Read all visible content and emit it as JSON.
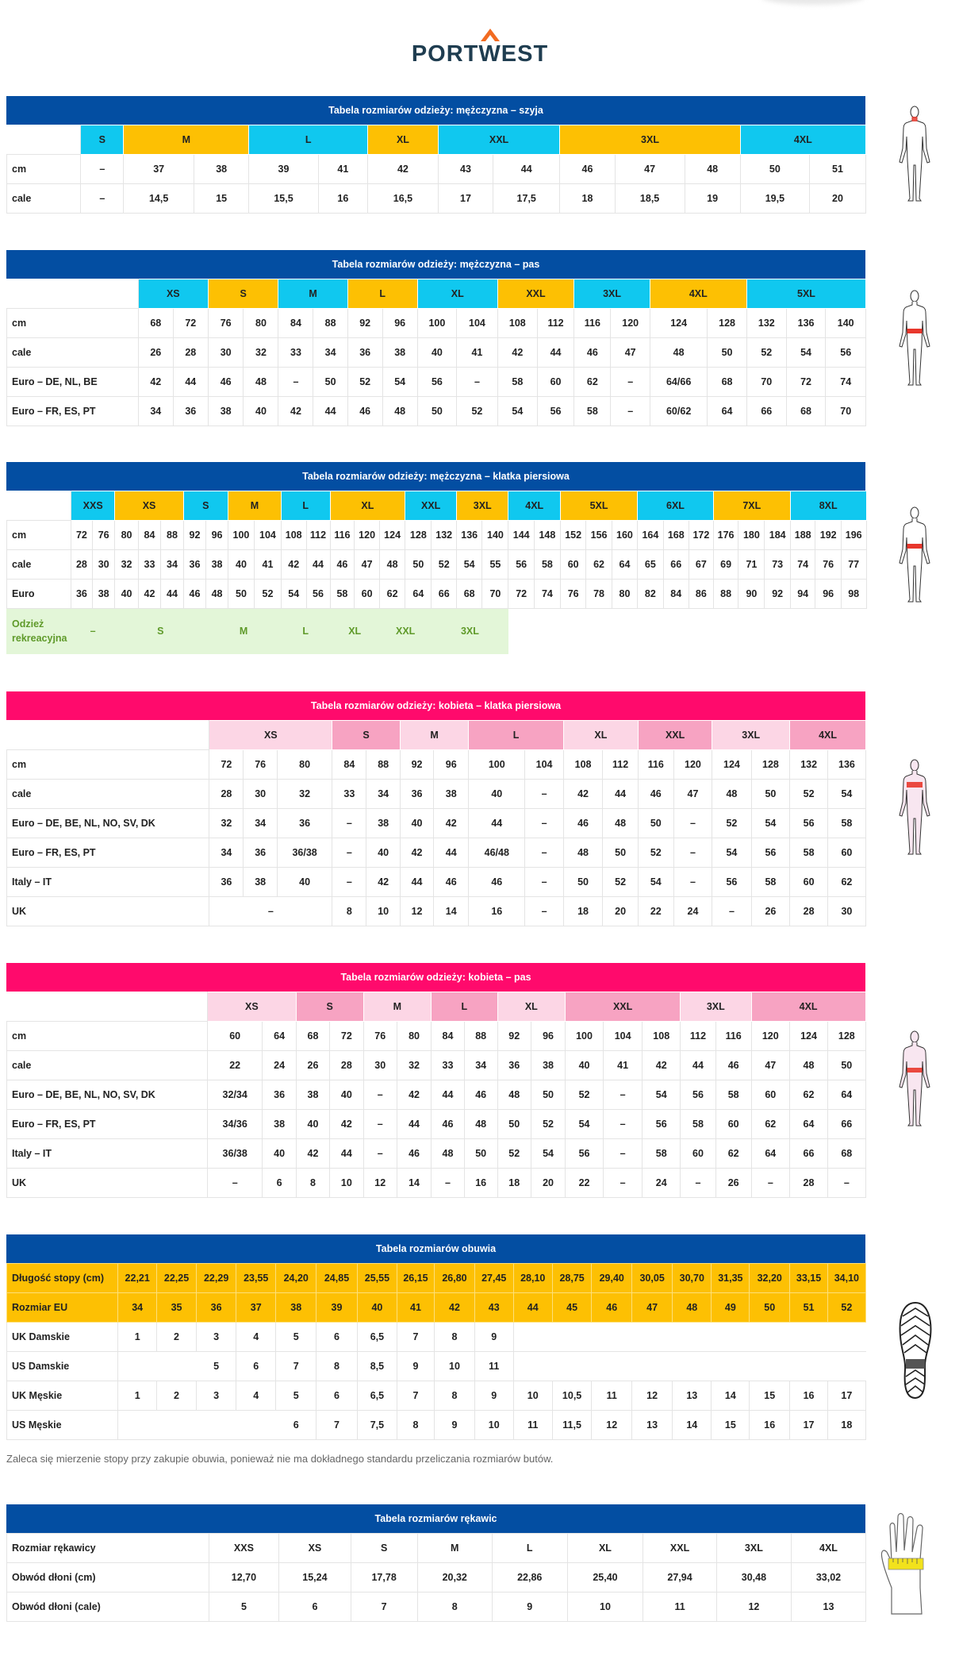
{
  "logo": {
    "text": "PORTWEST"
  },
  "colors": {
    "blue": "#034ea2",
    "pink": "#ff0a6c",
    "cyan": "#10c8ef",
    "yellow": "#fdc003",
    "pink_light": "#fcd6e5",
    "pink_mid": "#f7a3c2",
    "green_bg": "#e3f6d8",
    "green_text": "#5f9a2a",
    "highlight_red": "#e8372c",
    "logo_dark": "#1f3d50",
    "logo_orange": "#f26b21"
  },
  "tables": [
    {
      "title": "Tabela rozmiarów odzieży: mężczyzna – szyja",
      "theme": "blue",
      "size_row": [
        {
          "label": "S",
          "span": 1
        },
        {
          "label": "M",
          "span": 2
        },
        {
          "label": "L",
          "span": 2
        },
        {
          "label": "XL",
          "span": 1
        },
        {
          "label": "XXL",
          "span": 2
        },
        {
          "label": "3XL",
          "span": 3
        },
        {
          "label": "4XL",
          "span": 2
        }
      ],
      "rows": [
        {
          "label": "cm",
          "cells": [
            "–",
            "37",
            "38",
            "39",
            "41",
            "42",
            "43",
            "44",
            "46",
            "47",
            "48",
            "50",
            "51"
          ]
        },
        {
          "label": "cale",
          "cells": [
            "–",
            "14,5",
            "15",
            "15,5",
            "16",
            "16,5",
            "17",
            "17,5",
            "18",
            "18,5",
            "19",
            "19,5",
            "20"
          ]
        }
      ]
    },
    {
      "title": "Tabela rozmiarów odzieży: mężczyzna – pas",
      "theme": "blue",
      "size_row": [
        {
          "label": "XS",
          "span": 2
        },
        {
          "label": "S",
          "span": 2
        },
        {
          "label": "M",
          "span": 2
        },
        {
          "label": "L",
          "span": 2
        },
        {
          "label": "XL",
          "span": 2
        },
        {
          "label": "XXL",
          "span": 2
        },
        {
          "label": "3XL",
          "span": 2
        },
        {
          "label": "4XL",
          "span": 2
        },
        {
          "label": "5XL",
          "span": 3
        }
      ],
      "rows": [
        {
          "label": "cm",
          "cells": [
            "68",
            "72",
            "76",
            "80",
            "84",
            "88",
            "92",
            "96",
            "100",
            "104",
            "108",
            "112",
            "116",
            "120",
            "124",
            "128",
            "132",
            "136",
            "140"
          ]
        },
        {
          "label": "cale",
          "cells": [
            "26",
            "28",
            "30",
            "32",
            "33",
            "34",
            "36",
            "38",
            "40",
            "41",
            "42",
            "44",
            "46",
            "47",
            "48",
            "50",
            "52",
            "54",
            "56"
          ]
        },
        {
          "label": "Euro – DE, NL, BE",
          "cells": [
            "42",
            "44",
            "46",
            "48",
            "–",
            "50",
            "52",
            "54",
            "56",
            "–",
            "58",
            "60",
            "62",
            "–",
            "64/66",
            "68",
            "70",
            "72",
            "74"
          ]
        },
        {
          "label": "Euro – FR, ES, PT",
          "cells": [
            "34",
            "36",
            "38",
            "40",
            "42",
            "44",
            "46",
            "48",
            "50",
            "52",
            "54",
            "56",
            "58",
            "–",
            "60/62",
            "64",
            "66",
            "68",
            "70"
          ]
        }
      ]
    },
    {
      "title": "Tabela rozmiarów odzieży: mężczyzna – klatka piersiowa",
      "theme": "blue",
      "size_row": [
        {
          "label": "XXS",
          "span": 2
        },
        {
          "label": "XS",
          "span": 3
        },
        {
          "label": "S",
          "span": 2
        },
        {
          "label": "M",
          "span": 2
        },
        {
          "label": "L",
          "span": 2
        },
        {
          "label": "XL",
          "span": 3
        },
        {
          "label": "XXL",
          "span": 2
        },
        {
          "label": "3XL",
          "span": 2
        },
        {
          "label": "4XL",
          "span": 2
        },
        {
          "label": "5XL",
          "span": 3
        },
        {
          "label": "6XL",
          "span": 3
        },
        {
          "label": "7XL",
          "span": 3
        },
        {
          "label": "8XL",
          "span": 3
        }
      ],
      "rows": [
        {
          "label": "cm",
          "cells": [
            "72",
            "76",
            "80",
            "84",
            "88",
            "92",
            "96",
            "100",
            "104",
            "108",
            "112",
            "116",
            "120",
            "124",
            "128",
            "132",
            "136",
            "140",
            "144",
            "148",
            "152",
            "156",
            "160",
            "164",
            "168",
            "172",
            "176",
            "180",
            "184",
            "188",
            "192",
            "196"
          ]
        },
        {
          "label": "cale",
          "cells": [
            "28",
            "30",
            "32",
            "33",
            "34",
            "36",
            "38",
            "40",
            "41",
            "42",
            "44",
            "46",
            "47",
            "48",
            "50",
            "52",
            "54",
            "55",
            "56",
            "58",
            "60",
            "62",
            "64",
            "65",
            "66",
            "67",
            "69",
            "71",
            "73",
            "74",
            "76",
            "77"
          ]
        },
        {
          "label": "Euro",
          "cells": [
            "36",
            "38",
            "40",
            "42",
            "44",
            "46",
            "48",
            "50",
            "52",
            "54",
            "56",
            "58",
            "60",
            "62",
            "64",
            "66",
            "68",
            "70",
            "72",
            "74",
            "76",
            "78",
            "80",
            "82",
            "84",
            "86",
            "88",
            "90",
            "92",
            "94",
            "96",
            "98"
          ]
        },
        {
          "label": "Odzież rekreacyjna",
          "style": "recreational",
          "cells": [
            {
              "v": "–",
              "span": 2
            },
            {
              "v": "S",
              "span": 4
            },
            {
              "v": "M",
              "span": 3
            },
            {
              "v": "L",
              "span": 2
            },
            {
              "v": "XL",
              "span": 2
            },
            {
              "v": "XXL",
              "span": 2
            },
            {
              "v": "3XL",
              "span": 3
            },
            {
              "v": "",
              "span": 14,
              "blank": true
            }
          ]
        }
      ]
    },
    {
      "title": "Tabela rozmiarów odzieży: kobieta – klatka piersiowa",
      "theme": "pink",
      "size_row": [
        {
          "label": "XS",
          "span": 3
        },
        {
          "label": "S",
          "span": 2
        },
        {
          "label": "M",
          "span": 2
        },
        {
          "label": "L",
          "span": 2
        },
        {
          "label": "XL",
          "span": 2
        },
        {
          "label": "XXL",
          "span": 2
        },
        {
          "label": "3XL",
          "span": 2
        },
        {
          "label": "4XL",
          "span": 2
        }
      ],
      "rows": [
        {
          "label": "cm",
          "cells": [
            "72",
            "76",
            "80",
            "84",
            "88",
            "92",
            "96",
            "100",
            "104",
            "108",
            "112",
            "116",
            "120",
            "124",
            "128",
            "132",
            "136"
          ]
        },
        {
          "label": "cale",
          "cells": [
            "28",
            "30",
            "32",
            "33",
            "34",
            "36",
            "38",
            "40",
            "–",
            "42",
            "44",
            "46",
            "47",
            "48",
            "50",
            "52",
            "54"
          ]
        },
        {
          "label": "Euro – DE, BE, NL, NO, SV, DK",
          "cells": [
            "32",
            "34",
            "36",
            "–",
            "38",
            "40",
            "42",
            "44",
            "–",
            "46",
            "48",
            "50",
            "–",
            "52",
            "54",
            "56",
            "58"
          ]
        },
        {
          "label": "Euro – FR, ES, PT",
          "cells": [
            "34",
            "36",
            "36/38",
            "–",
            "40",
            "42",
            "44",
            "46/48",
            "–",
            "48",
            "50",
            "52",
            "–",
            "54",
            "56",
            "58",
            "60"
          ]
        },
        {
          "label": "Italy – IT",
          "cells": [
            "36",
            "38",
            "40",
            "–",
            "42",
            "44",
            "46",
            "46",
            "–",
            "50",
            "52",
            "54",
            "–",
            "56",
            "58",
            "60",
            "62"
          ]
        },
        {
          "label": "UK",
          "cells": [
            {
              "v": "–",
              "span": 3
            },
            "8",
            "10",
            "12",
            "14",
            "16",
            "–",
            "18",
            "20",
            "22",
            "24",
            "–",
            "26",
            "28",
            "30"
          ]
        }
      ]
    },
    {
      "title": "Tabela rozmiarów odzieży: kobieta – pas",
      "theme": "pink",
      "size_row": [
        {
          "label": "XS",
          "span": 2
        },
        {
          "label": "S",
          "span": 2
        },
        {
          "label": "M",
          "span": 2
        },
        {
          "label": "L",
          "span": 2
        },
        {
          "label": "XL",
          "span": 2
        },
        {
          "label": "XXL",
          "span": 3
        },
        {
          "label": "3XL",
          "span": 2
        },
        {
          "label": "4XL",
          "span": 3
        }
      ],
      "rows": [
        {
          "label": "cm",
          "cells": [
            "60",
            "64",
            "68",
            "72",
            "76",
            "80",
            "84",
            "88",
            "92",
            "96",
            "100",
            "104",
            "108",
            "112",
            "116",
            "120",
            "124",
            "128"
          ]
        },
        {
          "label": "cale",
          "cells": [
            "22",
            "24",
            "26",
            "28",
            "30",
            "32",
            "33",
            "34",
            "36",
            "38",
            "40",
            "41",
            "42",
            "44",
            "46",
            "47",
            "48",
            "50"
          ]
        },
        {
          "label": "Euro – DE, BE, NL, NO, SV, DK",
          "cells": [
            "32/34",
            "36",
            "38",
            "40",
            "–",
            "42",
            "44",
            "46",
            "48",
            "50",
            "52",
            "–",
            "54",
            "56",
            "58",
            "60",
            "62",
            "64"
          ]
        },
        {
          "label": "Euro – FR, ES, PT",
          "cells": [
            "34/36",
            "38",
            "40",
            "42",
            "–",
            "44",
            "46",
            "48",
            "50",
            "52",
            "54",
            "–",
            "56",
            "58",
            "60",
            "62",
            "64",
            "66"
          ]
        },
        {
          "label": "Italy – IT",
          "cells": [
            "36/38",
            "40",
            "42",
            "44",
            "–",
            "46",
            "48",
            "50",
            "52",
            "54",
            "56",
            "–",
            "58",
            "60",
            "62",
            "64",
            "66",
            "68"
          ]
        },
        {
          "label": "UK",
          "cells": [
            "–",
            "6",
            "8",
            "10",
            "12",
            "14",
            "–",
            "16",
            "18",
            "20",
            "22",
            "–",
            "24",
            "–",
            "26",
            "–",
            "28",
            "–"
          ]
        }
      ]
    },
    {
      "title": "Tabela rozmiarów obuwia",
      "theme": "blue",
      "rows": [
        {
          "label": "Długość stopy (cm)",
          "style": "highlight",
          "cells": [
            "22,21",
            "22,25",
            "22,29",
            "23,55",
            "24,20",
            "24,85",
            "25,55",
            "26,15",
            "26,80",
            "27,45",
            "28,10",
            "28,75",
            "29,40",
            "30,05",
            "30,70",
            "31,35",
            "32,20",
            "33,15",
            "34,10"
          ]
        },
        {
          "label": "Rozmiar EU",
          "style": "highlight",
          "cells": [
            "34",
            "35",
            "36",
            "37",
            "38",
            "39",
            "40",
            "41",
            "42",
            "43",
            "44",
            "45",
            "46",
            "47",
            "48",
            "49",
            "50",
            "51",
            "52"
          ]
        },
        {
          "label": "UK Damskie",
          "cells": [
            "1",
            "2",
            "3",
            "4",
            "5",
            "6",
            "6,5",
            "7",
            "8",
            "9",
            {
              "v": "",
              "span": 9,
              "blank": true
            }
          ]
        },
        {
          "label": "US Damskie",
          "cells": [
            {
              "v": "",
              "span": 2,
              "blank": true
            },
            "5",
            "6",
            "7",
            "8",
            "8,5",
            "9",
            "10",
            "11",
            {
              "v": "",
              "span": 9,
              "blank": true
            }
          ]
        },
        {
          "label": "UK Męskie",
          "cells": [
            "1",
            "2",
            "3",
            "4",
            "5",
            "6",
            "6,5",
            "7",
            "8",
            "9",
            "10",
            "10,5",
            "11",
            "12",
            "13",
            "14",
            "15",
            "16",
            "17"
          ]
        },
        {
          "label": "US Męskie",
          "cells": [
            {
              "v": "",
              "span": 4,
              "blank": true
            },
            "6",
            "7",
            "7,5",
            "8",
            "9",
            "10",
            "11",
            "11,5",
            "12",
            "13",
            "14",
            "15",
            "16",
            "17",
            "18"
          ]
        }
      ]
    },
    {
      "title": "Tabela rozmiarów rękawic",
      "theme": "blue",
      "rows": [
        {
          "label": "Rozmiar rękawicy",
          "cells": [
            "XXS",
            "XS",
            "S",
            "M",
            "L",
            "XL",
            "XXL",
            "3XL",
            "4XL"
          ]
        },
        {
          "label": "Obwód dłoni (cm)",
          "cells": [
            "12,70",
            "15,24",
            "17,78",
            "20,32",
            "22,86",
            "25,40",
            "27,94",
            "30,48",
            "33,02"
          ]
        },
        {
          "label": "Obwód dłoni (cale)",
          "cells": [
            "5",
            "6",
            "7",
            "8",
            "9",
            "10",
            "11",
            "12",
            "13"
          ]
        }
      ]
    }
  ],
  "footwear_note": "Zaleca się mierzenie stopy przy zakupie obuwia, ponieważ nie ma dokładnego standardu przeliczania rozmiarów butów.",
  "figures": [
    {
      "icon": "man-neck-measure-icon"
    },
    {
      "icon": "man-waist-measure-icon"
    },
    {
      "icon": "man-chest-measure-icon"
    },
    {
      "icon": "woman-chest-measure-icon"
    },
    {
      "icon": "woman-waist-measure-icon"
    },
    {
      "icon": "shoe-sole-icon"
    },
    {
      "icon": "hand-measure-icon"
    }
  ]
}
